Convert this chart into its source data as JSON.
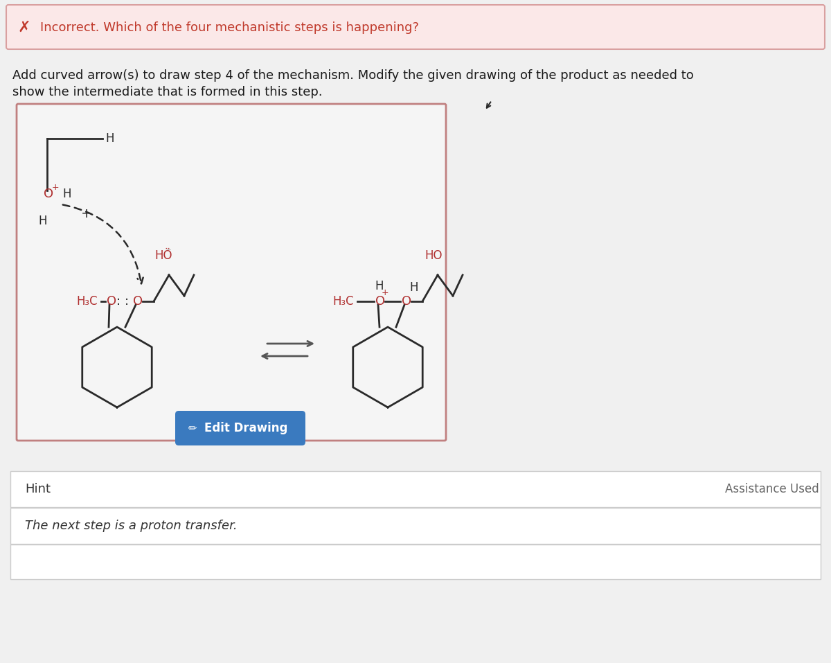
{
  "page_bg": "#e8e8e8",
  "content_bg": "#f0f0f0",
  "banner_bg": "#fbe8e8",
  "banner_border": "#d9a0a0",
  "banner_icon": "✗",
  "banner_text": "Incorrect. Which of the four mechanistic steps is happening?",
  "banner_text_color": "#c0392b",
  "instruction1": "Add curved arrow(s) to draw step 4 of the mechanism. Modify the given drawing of the product as needed to",
  "instruction2": "show the intermediate that is formed in this step.",
  "instr_color": "#1a1a1a",
  "chem_bg": "#f5f5f5",
  "chem_border": "#c08080",
  "red": "#b03030",
  "dark": "#2a2a2a",
  "brown": "#6b4040",
  "button_bg": "#3a7abf",
  "button_text": "  Edit Drawing",
  "hint_label": "Hint",
  "hint_text": "The next step is a proton transfer.",
  "assist_text": "Assistance Used",
  "box_border": "#cccccc",
  "box_bg": "#ffffff"
}
